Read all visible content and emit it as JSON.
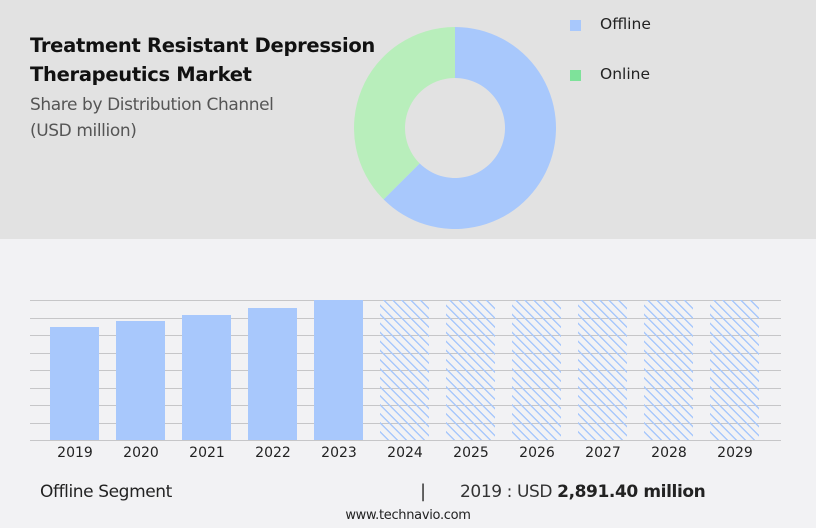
{
  "header": {
    "title_line1": "Treatment Resistant Depression",
    "title_line2": "Therapeutics Market",
    "subtitle_line1": "Share by Distribution Channel",
    "subtitle_line2": "(USD million)"
  },
  "legend": {
    "items": [
      {
        "label": "Offline",
        "color": "#a8c8fc"
      },
      {
        "label": "Online",
        "color": "#7ee29a"
      }
    ]
  },
  "footer": {
    "segment": "Offline Segment",
    "separator": "|",
    "value_prefix": "2019 : USD",
    "value": "2,891.40 million",
    "url": "www.technavio.com"
  },
  "colors": {
    "offline": "#a8c8fc",
    "online_donut": "#b8eebb",
    "online_legend": "#7ee29a",
    "top_panel": "#e2e2e2",
    "bottom_panel": "#f2f2f4",
    "gridline": "#c6c6c8"
  },
  "chart_data": [
    {
      "type": "pie",
      "variant": "donut",
      "title": "Share by Distribution Channel (USD million)",
      "categories": [
        "Offline",
        "Online"
      ],
      "values": [
        62.5,
        37.5
      ],
      "unit": "% (estimated from slice angles)",
      "legend_position": "right"
    },
    {
      "type": "bar",
      "title": "Offline Segment",
      "categories": [
        "2019",
        "2020",
        "2021",
        "2022",
        "2023",
        "2024",
        "2025",
        "2026",
        "2027",
        "2028",
        "2029"
      ],
      "values": [
        2891.4,
        3045,
        3199,
        3378,
        3583,
        null,
        null,
        null,
        null,
        null,
        null
      ],
      "forecast_categories": [
        "2024",
        "2025",
        "2026",
        "2027",
        "2028",
        "2029"
      ],
      "forecast_style": "hatched, full height, no values shown",
      "xlabel": "",
      "ylabel": "USD million",
      "ylim": [
        0,
        3583
      ],
      "grid": true,
      "annotation": "2019 : USD 2,891.40 million"
    }
  ]
}
